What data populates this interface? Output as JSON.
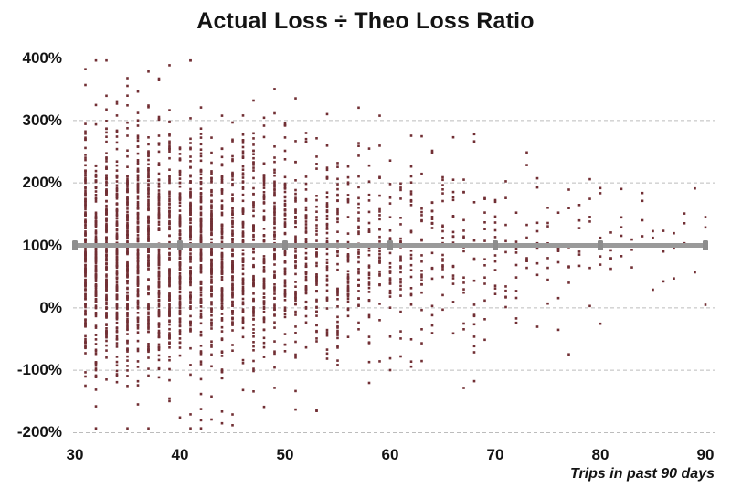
{
  "chart_data": {
    "type": "scatter",
    "title": "Actual Loss ÷ Theo Loss Ratio",
    "xlabel": "Trips in past 90 days",
    "ylabel": "",
    "xlim": [
      30,
      90
    ],
    "ylim_pct": [
      -200,
      400
    ],
    "grid": "horizontal-dashed",
    "legend": "none",
    "x_ticks": [
      [
        30,
        "30"
      ],
      [
        40,
        "40"
      ],
      [
        50,
        "50"
      ],
      [
        60,
        "60"
      ],
      [
        70,
        "70"
      ],
      [
        80,
        "80"
      ],
      [
        90,
        "90"
      ]
    ],
    "y_ticks": [
      [
        400,
        "400%"
      ],
      [
        300,
        "300%"
      ],
      [
        200,
        "200%"
      ],
      [
        100,
        "100%"
      ],
      [
        0,
        "0%"
      ],
      [
        -100,
        "-100%"
      ],
      [
        -200,
        "-200%"
      ]
    ],
    "point_color": "#712f34",
    "gridline_color": "#bcbcbc",
    "reference_line": {
      "y_pct": 100,
      "color": "#9a9a9a",
      "marker_color": "#8d8d8d",
      "marker_xs": [
        30,
        40,
        50,
        60,
        70,
        80,
        90
      ]
    },
    "points_model": {
      "note": "dense vertical columns at each integer trip count; density falls as trips increase; values spread around 100%",
      "columns_format": [
        "x_trips",
        "n_points",
        "mean_pct",
        "sd_pct"
      ],
      "clamp_pct": [
        -193,
        396
      ],
      "seed": 7,
      "columns": [
        [
          31,
          150,
          92,
          96
        ],
        [
          32,
          148,
          92,
          96
        ],
        [
          33,
          152,
          92,
          96
        ],
        [
          34,
          144,
          92,
          96
        ],
        [
          35,
          146,
          92,
          96
        ],
        [
          36,
          138,
          92,
          96
        ],
        [
          37,
          134,
          92,
          96
        ],
        [
          38,
          136,
          92,
          96
        ],
        [
          39,
          124,
          92,
          96
        ],
        [
          40,
          128,
          92,
          96
        ],
        [
          41,
          118,
          92,
          90
        ],
        [
          42,
          120,
          92,
          90
        ],
        [
          43,
          112,
          92,
          90
        ],
        [
          44,
          106,
          92,
          90
        ],
        [
          45,
          102,
          92,
          90
        ],
        [
          46,
          92,
          92,
          90
        ],
        [
          47,
          88,
          92,
          90
        ],
        [
          48,
          82,
          92,
          90
        ],
        [
          49,
          78,
          92,
          90
        ],
        [
          50,
          76,
          92,
          90
        ],
        [
          51,
          62,
          90,
          86
        ],
        [
          52,
          58,
          90,
          86
        ],
        [
          53,
          54,
          90,
          86
        ],
        [
          54,
          50,
          90,
          86
        ],
        [
          55,
          46,
          90,
          86
        ],
        [
          56,
          42,
          90,
          82
        ],
        [
          57,
          38,
          90,
          82
        ],
        [
          58,
          34,
          90,
          82
        ],
        [
          59,
          31,
          90,
          82
        ],
        [
          60,
          30,
          90,
          82
        ],
        [
          61,
          27,
          94,
          78
        ],
        [
          62,
          25,
          94,
          78
        ],
        [
          63,
          23,
          94,
          78
        ],
        [
          64,
          21,
          94,
          78
        ],
        [
          65,
          20,
          94,
          78
        ],
        [
          66,
          18,
          95,
          76
        ],
        [
          67,
          16,
          95,
          76
        ],
        [
          68,
          15,
          95,
          76
        ],
        [
          69,
          13,
          95,
          76
        ],
        [
          70,
          13,
          95,
          76
        ],
        [
          71,
          11,
          96,
          72
        ],
        [
          72,
          10,
          96,
          72
        ],
        [
          73,
          10,
          96,
          72
        ],
        [
          74,
          9,
          96,
          72
        ],
        [
          75,
          8,
          96,
          72
        ],
        [
          76,
          8,
          96,
          68
        ],
        [
          77,
          7,
          96,
          68
        ],
        [
          78,
          6,
          96,
          68
        ],
        [
          79,
          6,
          96,
          68
        ],
        [
          80,
          6,
          96,
          68
        ],
        [
          81,
          5,
          100,
          62
        ],
        [
          82,
          5,
          100,
          62
        ],
        [
          83,
          4,
          100,
          62
        ],
        [
          84,
          4,
          100,
          62
        ],
        [
          85,
          4,
          100,
          62
        ],
        [
          86,
          3,
          100,
          58
        ],
        [
          87,
          3,
          100,
          58
        ],
        [
          88,
          3,
          100,
          58
        ],
        [
          89,
          2,
          100,
          58
        ],
        [
          90,
          3,
          100,
          58
        ]
      ]
    }
  }
}
